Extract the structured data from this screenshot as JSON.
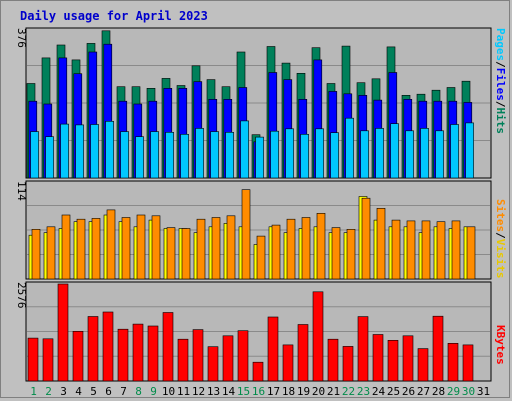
{
  "title": "Daily usage for April 2023",
  "colors": {
    "frame_bg": "#c0c0c0",
    "panel_bg": "#b8b8b8",
    "grid": "#8a8a8a",
    "title": "#0000cc",
    "hits": "#00805a",
    "files": "#0000ff",
    "pages": "#00c8ff",
    "visits": "#ffff00",
    "sites": "#ff8c00",
    "kbytes": "#ff0000",
    "weekday_label": "#006633",
    "weekend_label": "#008c4a",
    "axis_text": "#000000"
  },
  "y_labels": {
    "hits_panel": "376",
    "visits_panel": "114",
    "kbytes_panel": "2576"
  },
  "legend": {
    "pages": "Pages",
    "files": "Files",
    "hits": "Hits",
    "sites": "Sites",
    "visits": "Visits",
    "kbytes": "KBytes",
    "separator": "/"
  },
  "chart_data": [
    {
      "type": "bar",
      "panel": "hits_files_pages",
      "ylim": [
        0,
        376
      ],
      "categories": [
        "1",
        "2",
        "3",
        "4",
        "5",
        "6",
        "7",
        "8",
        "9",
        "10",
        "11",
        "12",
        "13",
        "14",
        "15",
        "16",
        "17",
        "18",
        "19",
        "20",
        "21",
        "22",
        "23",
        "24",
        "25",
        "26",
        "27",
        "28",
        "29",
        "30",
        "31"
      ],
      "series": [
        {
          "name": "Hits",
          "values": [
            240,
            305,
            338,
            300,
            342,
            374,
            232,
            232,
            228,
            253,
            235,
            285,
            250,
            232,
            320,
            110,
            334,
            292,
            266,
            331,
            240,
            335,
            242,
            252,
            333,
            210,
            213,
            223,
            230,
            246,
            0
          ]
        },
        {
          "name": "Files",
          "values": [
            195,
            188,
            305,
            265,
            320,
            340,
            195,
            188,
            195,
            228,
            228,
            245,
            200,
            200,
            230,
            92,
            268,
            250,
            200,
            300,
            220,
            214,
            210,
            198,
            268,
            200,
            195,
            195,
            195,
            192,
            0
          ]
        },
        {
          "name": "Pages",
          "values": [
            118,
            105,
            137,
            135,
            136,
            144,
            118,
            105,
            118,
            116,
            111,
            126,
            118,
            116,
            145,
            104,
            119,
            125,
            111,
            125,
            115,
            152,
            120,
            126,
            138,
            120,
            126,
            120,
            136,
            140,
            0
          ]
        }
      ]
    },
    {
      "type": "bar",
      "panel": "visits_sites",
      "ylim": [
        0,
        114
      ],
      "categories": [
        "1",
        "2",
        "3",
        "4",
        "5",
        "6",
        "7",
        "8",
        "9",
        "10",
        "11",
        "12",
        "13",
        "14",
        "15",
        "16",
        "17",
        "18",
        "19",
        "20",
        "21",
        "22",
        "23",
        "24",
        "25",
        "26",
        "27",
        "28",
        "29",
        "30",
        "31"
      ],
      "series": [
        {
          "name": "Visits",
          "values": [
            52,
            55,
            60,
            68,
            68,
            76,
            68,
            62,
            70,
            60,
            60,
            55,
            62,
            66,
            62,
            41,
            62,
            55,
            60,
            62,
            55,
            55,
            98,
            70,
            62,
            62,
            55,
            62,
            60,
            62,
            0
          ]
        },
        {
          "name": "Sites",
          "values": [
            59,
            62,
            76,
            71,
            72,
            82,
            73,
            76,
            75,
            61,
            60,
            71,
            73,
            75,
            106,
            51,
            64,
            71,
            73,
            78,
            61,
            59,
            96,
            84,
            70,
            69,
            69,
            68,
            69,
            62,
            0
          ]
        }
      ]
    },
    {
      "type": "bar",
      "panel": "kbytes",
      "ylim": [
        0,
        2576
      ],
      "categories": [
        "1",
        "2",
        "3",
        "4",
        "5",
        "6",
        "7",
        "8",
        "9",
        "10",
        "11",
        "12",
        "13",
        "14",
        "15",
        "16",
        "17",
        "18",
        "19",
        "20",
        "21",
        "22",
        "23",
        "24",
        "25",
        "26",
        "27",
        "28",
        "29",
        "30",
        "31"
      ],
      "series": [
        {
          "name": "KBytes",
          "values": [
            1140,
            1120,
            2576,
            1320,
            1712,
            1832,
            1376,
            1512,
            1460,
            1820,
            1110,
            1364,
            910,
            1200,
            1336,
            500,
            1700,
            960,
            1500,
            2370,
            1110,
            920,
            1710,
            1236,
            1080,
            1200,
            860,
            1720,
            1000,
            960,
            0
          ]
        }
      ]
    }
  ],
  "x_labels": [
    {
      "text": "1",
      "weekend": true
    },
    {
      "text": "2",
      "weekend": true
    },
    {
      "text": "3",
      "weekend": false
    },
    {
      "text": "4",
      "weekend": false
    },
    {
      "text": "5",
      "weekend": false
    },
    {
      "text": "6",
      "weekend": false
    },
    {
      "text": "7",
      "weekend": false
    },
    {
      "text": "8",
      "weekend": true
    },
    {
      "text": "9",
      "weekend": true
    },
    {
      "text": "10",
      "weekend": false
    },
    {
      "text": "11",
      "weekend": false
    },
    {
      "text": "12",
      "weekend": false
    },
    {
      "text": "13",
      "weekend": false
    },
    {
      "text": "14",
      "weekend": false
    },
    {
      "text": "15",
      "weekend": true
    },
    {
      "text": "16",
      "weekend": true
    },
    {
      "text": "17",
      "weekend": false
    },
    {
      "text": "18",
      "weekend": false
    },
    {
      "text": "19",
      "weekend": false
    },
    {
      "text": "20",
      "weekend": false
    },
    {
      "text": "21",
      "weekend": false
    },
    {
      "text": "22",
      "weekend": true
    },
    {
      "text": "23",
      "weekend": true
    },
    {
      "text": "24",
      "weekend": false
    },
    {
      "text": "25",
      "weekend": false
    },
    {
      "text": "26",
      "weekend": false
    },
    {
      "text": "27",
      "weekend": false
    },
    {
      "text": "28",
      "weekend": false
    },
    {
      "text": "29",
      "weekend": true
    },
    {
      "text": "30",
      "weekend": true
    },
    {
      "text": "31",
      "weekend": false
    }
  ]
}
